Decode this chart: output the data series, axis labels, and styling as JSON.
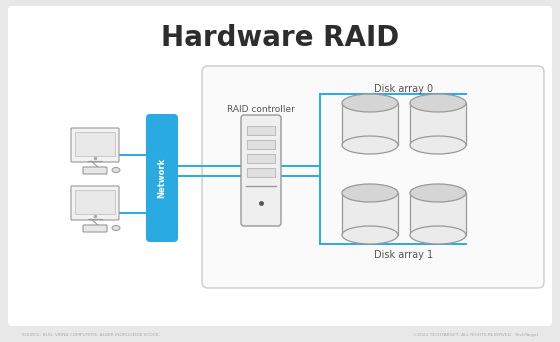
{
  "title": "Hardware RAID",
  "title_fontsize": 20,
  "bg_color": "#e8e8e8",
  "panel_color": "#ffffff",
  "accent_color": "#29abe2",
  "dark_color": "#2d2d2d",
  "network_label": "Network",
  "controller_label": "RAID controller",
  "disk_array0_label": "Disk array 0",
  "disk_array1_label": "Disk array 1",
  "footer_left": "SOURCE: BUG, VIRNA COMPUTERS: ALBER INORGUEIDE STOCK.",
  "footer_right": "©2022 TECHTARGET, ALL RIGHTS RESERVED   TechTarget"
}
